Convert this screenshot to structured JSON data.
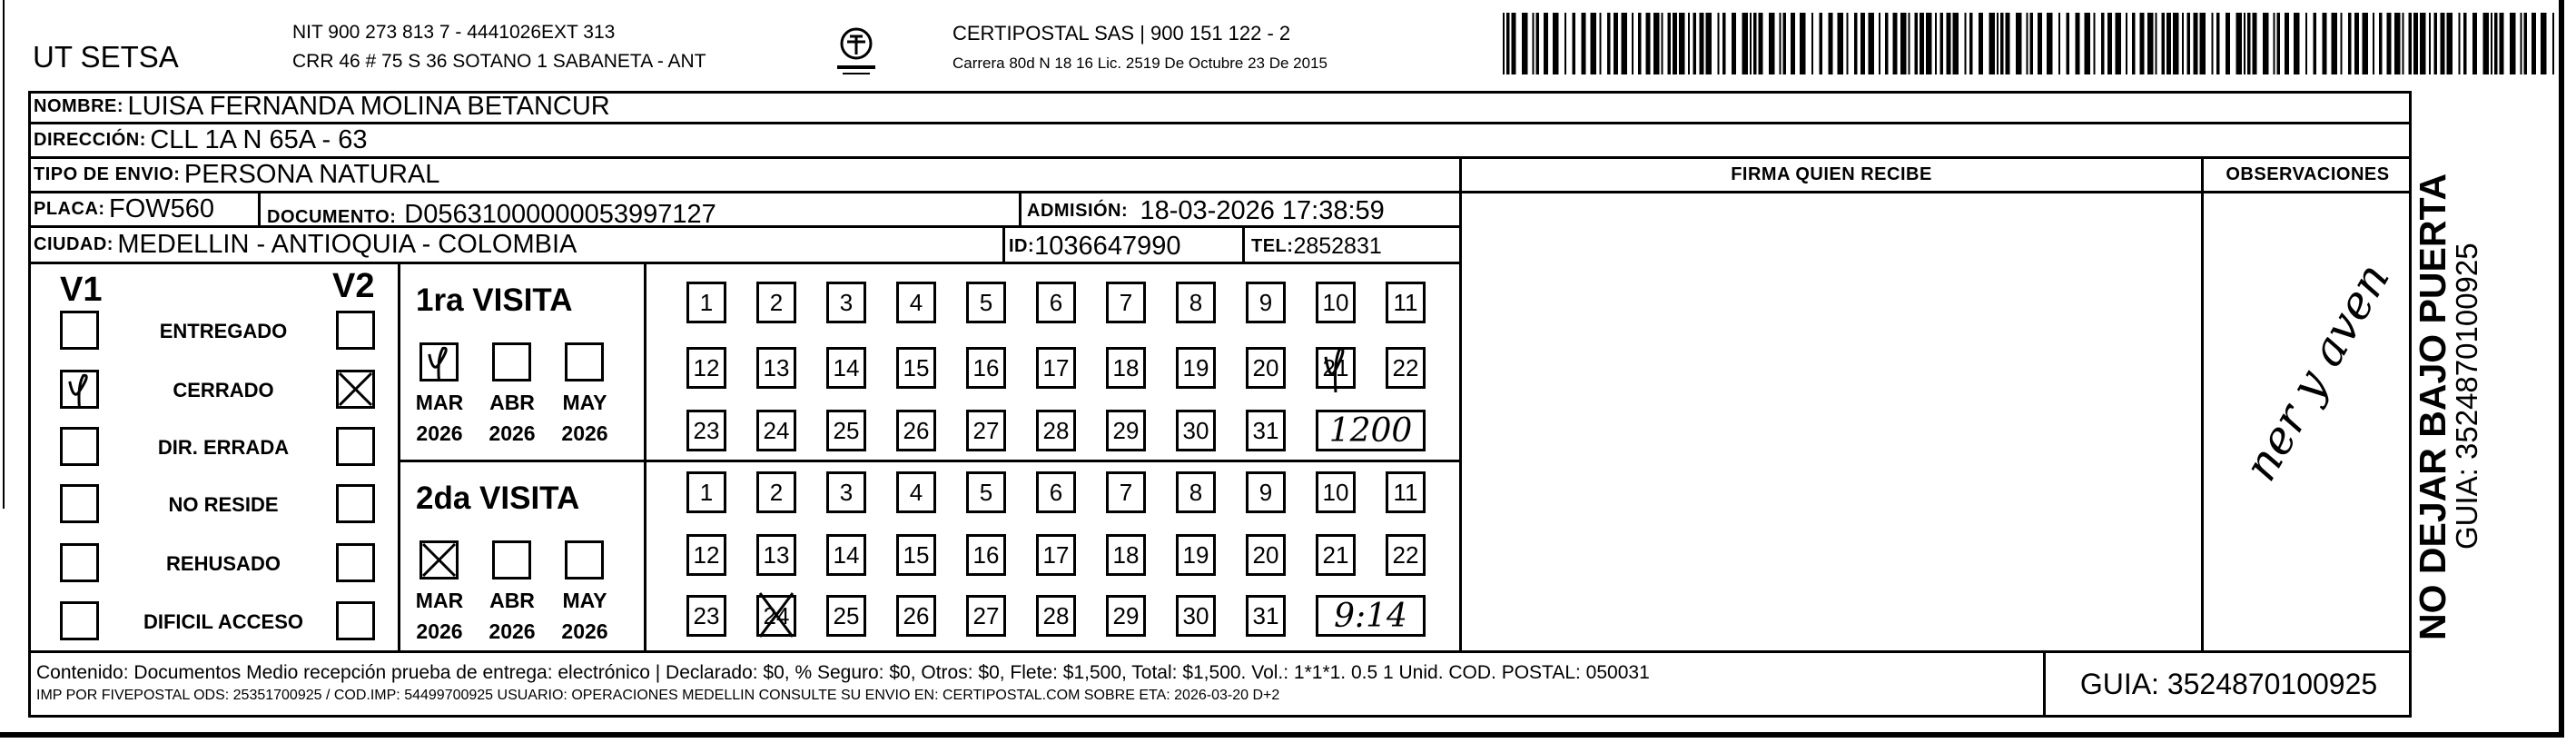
{
  "header": {
    "company": "UT SETSA",
    "nit_line": "NIT 900 273 813 7 - 4441026EXT 313",
    "address_line": "CRR 46 # 75 S 36 SOTANO 1 SABANETA - ANT",
    "logo_text": "CERTIPOSTAL",
    "carrier_line": "CERTIPOSTAL SAS | 900 151 122 - 2",
    "license_line": "Carrera 80d N 18 16  Lic. 2519 De Octubre 23 De 2015"
  },
  "recipient": {
    "nombre_label": "NOMBRE:",
    "nombre": "LUISA FERNANDA MOLINA BETANCUR",
    "direccion_label": "DIRECCIÓN:",
    "direccion": "CLL 1A N 65A - 63",
    "tipo_label": "TIPO DE ENVIO:",
    "tipo": "PERSONA NATURAL",
    "placa_label": "PLACA:",
    "placa": "FOW560",
    "documento_label": "DOCUMENTO:",
    "documento": "D05631000000053997127",
    "admision_label": "ADMISIÓN:",
    "admision": "18-03-2026 17:38:59",
    "ciudad_label": "CIUDAD:",
    "ciudad": "MEDELLIN - ANTIOQUIA - COLOMBIA",
    "id_label": "ID:",
    "id": "1036647990",
    "tel_label": "TEL:",
    "tel": "2852831"
  },
  "columns": {
    "firma": "FIRMA QUIEN RECIBE",
    "observaciones": "OBSERVACIONES",
    "observaciones_handwritten": "ner y aven"
  },
  "status": {
    "v1_label": "V1",
    "v2_label": "V2",
    "items": [
      {
        "label": "ENTREGADO",
        "v1": false,
        "v2": false
      },
      {
        "label": "CERRADO",
        "v1": true,
        "v2": true
      },
      {
        "label": "DIR. ERRADA",
        "v1": false,
        "v2": false
      },
      {
        "label": "NO RESIDE",
        "v1": false,
        "v2": false
      },
      {
        "label": "REHUSADO",
        "v1": false,
        "v2": false
      },
      {
        "label": "DIFICIL ACCESO",
        "v1": false,
        "v2": false
      }
    ]
  },
  "visits": [
    {
      "title": "1ra VISITA",
      "months": [
        {
          "month": "MAR",
          "year": "2026",
          "checked": true
        },
        {
          "month": "ABR",
          "year": "2026",
          "checked": false
        },
        {
          "month": "MAY",
          "year": "2026",
          "checked": false
        }
      ],
      "days": [
        1,
        2,
        3,
        4,
        5,
        6,
        7,
        8,
        9,
        10,
        11,
        12,
        13,
        14,
        15,
        16,
        17,
        18,
        19,
        20,
        21,
        22,
        23,
        24,
        25,
        26,
        27,
        28,
        29,
        30,
        31
      ],
      "marked_day": 21,
      "time_handwritten": "1200"
    },
    {
      "title": "2da VISITA",
      "months": [
        {
          "month": "MAR",
          "year": "2026",
          "checked": true
        },
        {
          "month": "ABR",
          "year": "2026",
          "checked": false
        },
        {
          "month": "MAY",
          "year": "2026",
          "checked": false
        }
      ],
      "days": [
        1,
        2,
        3,
        4,
        5,
        6,
        7,
        8,
        9,
        10,
        11,
        12,
        13,
        14,
        15,
        16,
        17,
        18,
        19,
        20,
        21,
        22,
        23,
        24,
        25,
        26,
        27,
        28,
        29,
        30,
        31
      ],
      "marked_day": 24,
      "time_handwritten": "9:14"
    }
  ],
  "footer": {
    "line1": "Contenido: Documentos Medio recepción prueba de entrega: electrónico | Declarado: $0, % Seguro: $0, Otros: $0, Flete: $1,500, Total: $1,500. Vol.: 1*1*1. 0.5  1 Unid. COD. POSTAL: 050031",
    "line2": "IMP POR FIVEPOSTAL ODS: 25351700925 / COD.IMP: 54499700925 USUARIO: OPERACIONES MEDELLIN CONSULTE SU ENVIO EN: CERTIPOSTAL.COM SOBRE ETA: 2026-03-20 D+2",
    "guia": "GUIA: 3524870100925"
  },
  "side": {
    "warning": "NO DEJAR BAJO PUERTA",
    "guia": "GUIA: 3524870100925"
  }
}
